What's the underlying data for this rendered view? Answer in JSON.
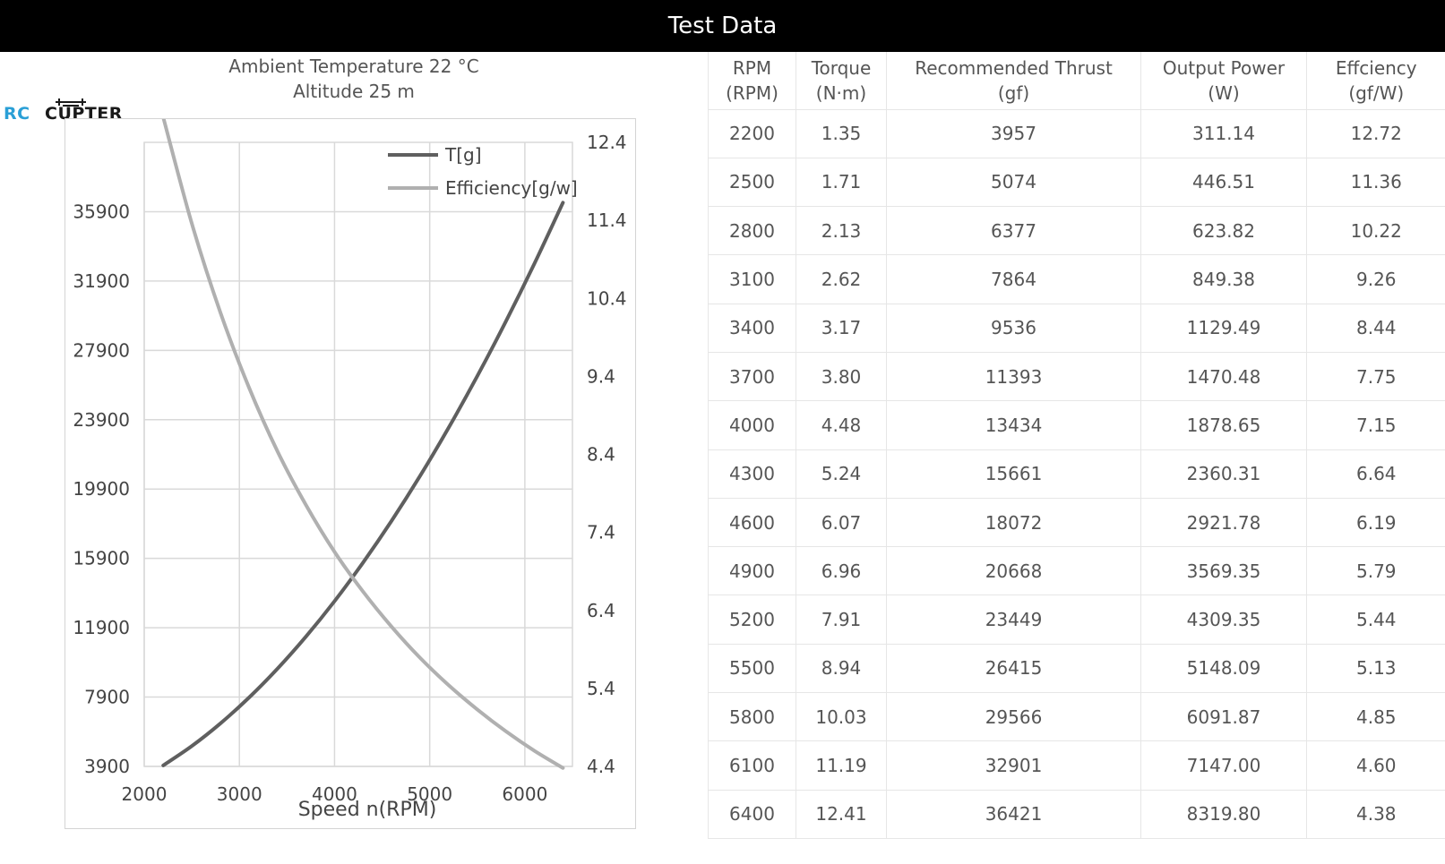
{
  "header": {
    "title": "Test Data"
  },
  "conditions": {
    "temperature": "Ambient Temperature  22 °C",
    "altitude": "Altitude  25 m"
  },
  "logo": {
    "rc": "RC",
    "copter": "CUPTER"
  },
  "colors": {
    "thrust": "#5f5f5f",
    "efficiency": "#b0b0b0",
    "grid": "#d9d9d9"
  },
  "table": {
    "headers": [
      "RPM\n(RPM)",
      "Torque\n(N·m)",
      "Recommended Thrust\n(gf)",
      "Output Power\n(W)",
      "Effciency\n(gf/W)"
    ],
    "rows": [
      [
        "2200",
        "1.35",
        "3957",
        "311.14",
        "12.72"
      ],
      [
        "2500",
        "1.71",
        "5074",
        "446.51",
        "11.36"
      ],
      [
        "2800",
        "2.13",
        "6377",
        "623.82",
        "10.22"
      ],
      [
        "3100",
        "2.62",
        "7864",
        "849.38",
        "9.26"
      ],
      [
        "3400",
        "3.17",
        "9536",
        "1129.49",
        "8.44"
      ],
      [
        "3700",
        "3.80",
        "11393",
        "1470.48",
        "7.75"
      ],
      [
        "4000",
        "4.48",
        "13434",
        "1878.65",
        "7.15"
      ],
      [
        "4300",
        "5.24",
        "15661",
        "2360.31",
        "6.64"
      ],
      [
        "4600",
        "6.07",
        "18072",
        "2921.78",
        "6.19"
      ],
      [
        "4900",
        "6.96",
        "20668",
        "3569.35",
        "5.79"
      ],
      [
        "5200",
        "7.91",
        "23449",
        "4309.35",
        "5.44"
      ],
      [
        "5500",
        "8.94",
        "26415",
        "5148.09",
        "5.13"
      ],
      [
        "5800",
        "10.03",
        "29566",
        "6091.87",
        "4.85"
      ],
      [
        "6100",
        "11.19",
        "32901",
        "7147.00",
        "4.60"
      ],
      [
        "6400",
        "12.41",
        "36421",
        "8319.80",
        "4.38"
      ]
    ]
  },
  "chart_data": {
    "type": "line",
    "xlabel": "Speed n(RPM)",
    "xlim": [
      2000,
      6500
    ],
    "x_ticks": [
      "2000",
      "3000",
      "4000",
      "5000",
      "6000"
    ],
    "y_left_lim": [
      3900,
      39900
    ],
    "y_left_ticks": [
      "3900",
      "7900",
      "11900",
      "15900",
      "19900",
      "23900",
      "27900",
      "31900",
      "35900"
    ],
    "y_right_lim": [
      4.4,
      12.4
    ],
    "y_right_ticks": [
      "4.4",
      "5.4",
      "6.4",
      "7.4",
      "8.4",
      "9.4",
      "10.4",
      "11.4",
      "12.4"
    ],
    "grid": true,
    "legend_position": "top-right",
    "x": [
      2200,
      2500,
      2800,
      3100,
      3400,
      3700,
      4000,
      4300,
      4600,
      4900,
      5200,
      5500,
      5800,
      6100,
      6400
    ],
    "series": [
      {
        "name": "T[g]",
        "axis": "left",
        "values": [
          3957,
          5074,
          6377,
          7864,
          9536,
          11393,
          13434,
          15661,
          18072,
          20668,
          23449,
          26415,
          29566,
          32901,
          36421
        ]
      },
      {
        "name": "Efficiency[g/w]",
        "axis": "right",
        "values": [
          12.72,
          11.36,
          10.22,
          9.26,
          8.44,
          7.75,
          7.15,
          6.64,
          6.19,
          5.79,
          5.44,
          5.13,
          4.85,
          4.6,
          4.38
        ]
      }
    ]
  }
}
